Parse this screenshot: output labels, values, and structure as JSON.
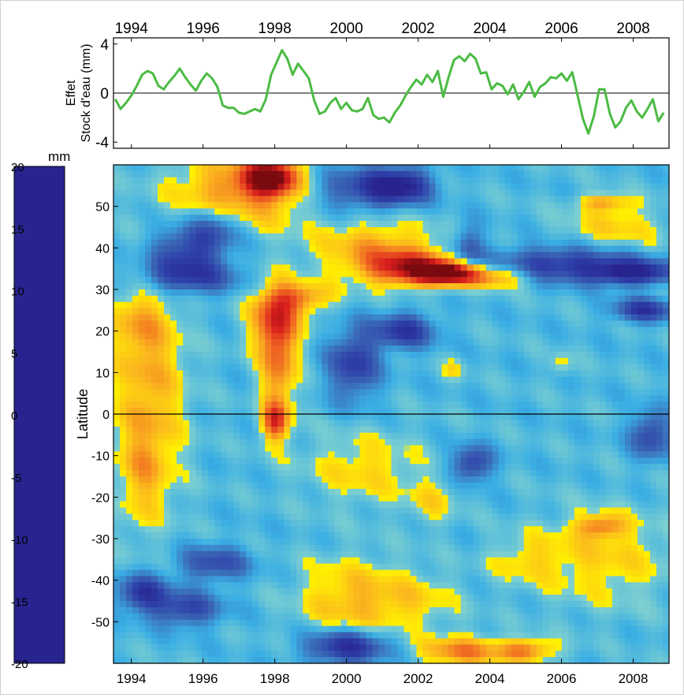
{
  "chart_data": [
    {
      "type": "line",
      "ylabel_line1": "Effet",
      "ylabel_line2": "Stock d'eau (mm)",
      "xlim": [
        1993.5,
        2009.0
      ],
      "ylim": [
        -4.5,
        4.5
      ],
      "xticks": [
        1994,
        1996,
        1998,
        2000,
        2002,
        2004,
        2006,
        2008
      ],
      "yticks": [
        4,
        0,
        -4
      ],
      "reference_line": 0,
      "line_color": "#4cbb44",
      "series": [
        {
          "x": [
            1993.55,
            1993.7,
            1993.85,
            1994.0,
            1994.15,
            1994.3,
            1994.45,
            1994.6,
            1994.75,
            1994.9,
            1995.05,
            1995.2,
            1995.35,
            1995.5,
            1995.65,
            1995.8,
            1995.95,
            1996.1,
            1996.25,
            1996.4,
            1996.55,
            1996.7,
            1996.85,
            1997.0,
            1997.15,
            1997.3,
            1997.45,
            1997.6,
            1997.75,
            1997.9,
            1998.05,
            1998.2,
            1998.35,
            1998.5,
            1998.65,
            1998.8,
            1998.95,
            1999.1,
            1999.25,
            1999.4,
            1999.55,
            1999.7,
            1999.85,
            2000.0,
            2000.15,
            2000.3,
            2000.45,
            2000.6,
            2000.75,
            2000.9,
            2001.05,
            2001.2,
            2001.35,
            2001.5,
            2001.65,
            2001.8,
            2001.95,
            2002.1,
            2002.25,
            2002.4,
            2002.55,
            2002.7,
            2002.85,
            2003.0,
            2003.15,
            2003.3,
            2003.45,
            2003.6,
            2003.75,
            2003.9,
            2004.05,
            2004.2,
            2004.35,
            2004.5,
            2004.65,
            2004.8,
            2004.95,
            2005.1,
            2005.25,
            2005.4,
            2005.55,
            2005.7,
            2005.85,
            2006.0,
            2006.15,
            2006.3,
            2006.45,
            2006.6,
            2006.75,
            2006.9,
            2007.05,
            2007.2,
            2007.35,
            2007.5,
            2007.65,
            2007.8,
            2007.95,
            2008.1,
            2008.25,
            2008.4,
            2008.55,
            2008.7,
            2008.85
          ],
          "y": [
            -0.5,
            -1.3,
            -0.8,
            -0.2,
            0.6,
            1.5,
            1.8,
            1.6,
            0.6,
            0.3,
            0.9,
            1.4,
            2.0,
            1.3,
            0.7,
            0.2,
            1.0,
            1.6,
            1.2,
            0.5,
            -1.0,
            -1.2,
            -1.2,
            -1.6,
            -1.7,
            -1.5,
            -1.3,
            -1.5,
            -0.5,
            1.5,
            2.5,
            3.5,
            2.8,
            1.5,
            2.4,
            1.8,
            1.2,
            -0.6,
            -1.7,
            -1.5,
            -0.8,
            -0.4,
            -1.3,
            -0.8,
            -1.4,
            -1.5,
            -1.3,
            -0.4,
            -1.8,
            -2.1,
            -2.0,
            -2.4,
            -1.6,
            -1.0,
            -0.2,
            0.5,
            1.1,
            0.7,
            1.5,
            0.9,
            1.8,
            -0.3,
            1.3,
            2.7,
            3.0,
            2.6,
            3.2,
            2.8,
            1.6,
            1.7,
            0.3,
            0.8,
            0.6,
            -0.1,
            0.7,
            -0.5,
            0.1,
            0.9,
            -0.3,
            0.5,
            0.8,
            1.3,
            1.2,
            1.6,
            1.0,
            1.7,
            -0.2,
            -2.1,
            -3.3,
            -1.9,
            0.3,
            0.3,
            -1.7,
            -2.8,
            -2.3,
            -1.2,
            -0.6,
            -1.5,
            -2.0,
            -1.3,
            -0.5,
            -2.3,
            -1.6
          ]
        }
      ]
    },
    {
      "type": "heatmap",
      "ylabel": "Latitude",
      "xlim": [
        1993.5,
        2009.0
      ],
      "ylim": [
        -60,
        60
      ],
      "xticks": [
        1994,
        1996,
        1998,
        2000,
        2002,
        2004,
        2006,
        2008
      ],
      "yticks": [
        50,
        40,
        30,
        20,
        10,
        0,
        -10,
        -20,
        -30,
        -40,
        -50
      ],
      "reference_line": 0,
      "colorbar": {
        "label": "mm",
        "range": [
          -20,
          20
        ],
        "ticks": [
          20,
          15,
          10,
          5,
          0,
          -5,
          -10,
          -15,
          -20
        ],
        "stops": [
          {
            "v": -20,
            "color": "#28248f"
          },
          {
            "v": -15,
            "color": "#2e3ea8"
          },
          {
            "v": -10,
            "color": "#3b6ab7"
          },
          {
            "v": -5,
            "color": "#3aaee4"
          },
          {
            "v": 0,
            "color": "#7fd0cf"
          },
          {
            "v": 0.01,
            "color": "#fff200"
          },
          {
            "v": 5,
            "color": "#fbb81e"
          },
          {
            "v": 10,
            "color": "#f06a22"
          },
          {
            "v": 15,
            "color": "#d91d1d"
          },
          {
            "v": 20,
            "color": "#7a0a0f"
          }
        ]
      },
      "background_value": -3.5,
      "anomalies": [
        {
          "x": 1994.5,
          "y": 5,
          "sx": 0.7,
          "sy": 18,
          "v": 9
        },
        {
          "x": 1994.3,
          "y": -15,
          "sx": 0.45,
          "sy": 8,
          "v": 5
        },
        {
          "x": 1994.1,
          "y": 22,
          "sx": 0.6,
          "sy": 6,
          "v": 5
        },
        {
          "x": 1997.2,
          "y": 54,
          "sx": 1.3,
          "sy": 6,
          "v": 13
        },
        {
          "x": 1997.9,
          "y": 57,
          "sx": 0.5,
          "sy": 3,
          "v": 19
        },
        {
          "x": 1995.5,
          "y": 40,
          "sx": 0.7,
          "sy": 4,
          "v": -11
        },
        {
          "x": 1995.5,
          "y": 33,
          "sx": 1.0,
          "sy": 3,
          "v": -12
        },
        {
          "x": 1996.4,
          "y": 45,
          "sx": 0.5,
          "sy": 4,
          "v": -8
        },
        {
          "x": 1998.0,
          "y": 23,
          "sx": 0.5,
          "sy": 6,
          "v": 14
        },
        {
          "x": 1998.1,
          "y": 10,
          "sx": 0.35,
          "sy": 10,
          "v": 11
        },
        {
          "x": 1998.0,
          "y": -2,
          "sx": 0.25,
          "sy": 3,
          "v": 13
        },
        {
          "x": 1998.8,
          "y": 28,
          "sx": 0.6,
          "sy": 2.5,
          "v": 10
        },
        {
          "x": 2000.2,
          "y": 54,
          "sx": 1.0,
          "sy": 4,
          "v": -10
        },
        {
          "x": 2001.5,
          "y": 55,
          "sx": 0.6,
          "sy": 3,
          "v": -15
        },
        {
          "x": 2000.8,
          "y": 40,
          "sx": 1.2,
          "sy": 5,
          "v": 9
        },
        {
          "x": 2001.8,
          "y": 35,
          "sx": 0.9,
          "sy": 3,
          "v": 17
        },
        {
          "x": 2002.9,
          "y": 34,
          "sx": 0.6,
          "sy": 2,
          "v": 20
        },
        {
          "x": 2004.2,
          "y": 33,
          "sx": 0.7,
          "sy": 2,
          "v": 11
        },
        {
          "x": 2000.2,
          "y": 12,
          "sx": 0.5,
          "sy": 6,
          "v": -12
        },
        {
          "x": 2001.6,
          "y": 20,
          "sx": 0.6,
          "sy": 3,
          "v": -13
        },
        {
          "x": 2000.5,
          "y": -13,
          "sx": 1.1,
          "sy": 6,
          "v": 6
        },
        {
          "x": 2002.4,
          "y": -21,
          "sx": 0.5,
          "sy": 4,
          "v": 5
        },
        {
          "x": 2003.0,
          "y": 11,
          "sx": 0.2,
          "sy": 2,
          "v": 5
        },
        {
          "x": 2003.5,
          "y": -12,
          "sx": 0.4,
          "sy": 3,
          "v": -12
        },
        {
          "x": 2006.0,
          "y": 36,
          "sx": 1.5,
          "sy": 3,
          "v": -13
        },
        {
          "x": 2008.0,
          "y": 34,
          "sx": 0.8,
          "sy": 2,
          "v": -15
        },
        {
          "x": 2007.5,
          "y": 45,
          "sx": 1.0,
          "sy": 4,
          "v": 6
        },
        {
          "x": 2007.2,
          "y": 51,
          "sx": 0.5,
          "sy": 1.5,
          "v": 9
        },
        {
          "x": 2008.3,
          "y": 25,
          "sx": 0.6,
          "sy": 2,
          "v": -13
        },
        {
          "x": 2007.2,
          "y": -35,
          "sx": 1.3,
          "sy": 8,
          "v": 6
        },
        {
          "x": 2007.1,
          "y": -27,
          "sx": 0.5,
          "sy": 2,
          "v": 10
        },
        {
          "x": 2005.0,
          "y": -35,
          "sx": 0.7,
          "sy": 4,
          "v": 5
        },
        {
          "x": 2000.1,
          "y": -45,
          "sx": 1.0,
          "sy": 7,
          "v": 8
        },
        {
          "x": 2001.9,
          "y": -45,
          "sx": 0.9,
          "sy": 5,
          "v": 5
        },
        {
          "x": 2003.2,
          "y": -57,
          "sx": 0.8,
          "sy": 2.5,
          "v": 12
        },
        {
          "x": 2005.0,
          "y": -57,
          "sx": 0.6,
          "sy": 2,
          "v": 12
        },
        {
          "x": 2000.0,
          "y": -56,
          "sx": 0.8,
          "sy": 3,
          "v": -16
        },
        {
          "x": 1994.3,
          "y": -43,
          "sx": 0.5,
          "sy": 3,
          "v": -13
        },
        {
          "x": 1995.5,
          "y": -47,
          "sx": 0.7,
          "sy": 3,
          "v": -11
        },
        {
          "x": 1996.3,
          "y": -36,
          "sx": 0.7,
          "sy": 3,
          "v": -10
        },
        {
          "x": 2003.4,
          "y": 40,
          "sx": 0.3,
          "sy": 4,
          "v": -9
        },
        {
          "x": 2006.0,
          "y": 12,
          "sx": 0.2,
          "sy": 2,
          "v": 5
        },
        {
          "x": 2008.5,
          "y": -5,
          "sx": 0.4,
          "sy": 4,
          "v": -11
        }
      ]
    }
  ]
}
